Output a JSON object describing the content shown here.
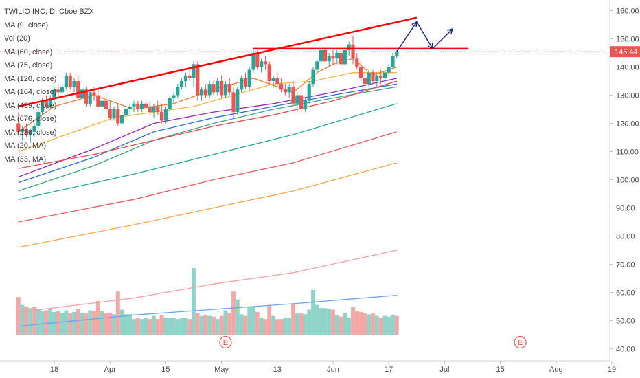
{
  "legend": {
    "symbol_line": "TWILIO INC, D, Cboe BZX",
    "items": [
      "MA (9, close)",
      "Vol (20)",
      "MA (60, close)",
      "MA (75, close)",
      "MA (120, close)",
      "MA (164, close)",
      "MA (439, close)",
      "MA (676, close)",
      "MA (236, close)",
      "MA (20, MA)",
      "MA (33, MA)"
    ]
  },
  "last_price": "145.44",
  "earnings_marker": "E",
  "colors": {
    "up": "#26a69a",
    "down": "#ef5350",
    "vol_up": "#8fd3c9",
    "vol_down": "#f4a8a6",
    "trendline": "#ff0000",
    "projection": "#1c2a8a",
    "price_tag": "#ef5350"
  },
  "chart_data": {
    "type": "candlestick",
    "title": "TWILIO INC, D, Cboe BZX",
    "ylim": [
      38,
      162
    ],
    "y_ticks": [
      "160.00",
      "150.00",
      "140.00",
      "130.00",
      "120.00",
      "110.00",
      "100.00",
      "90.00",
      "80.00",
      "70.00",
      "60.00",
      "50.00",
      "40.00"
    ],
    "x_ticks": [
      "18",
      "Apr",
      "15",
      "May",
      "13",
      "Jun",
      "17",
      "Jul",
      "15",
      "Aug",
      "19"
    ],
    "x_tick_days": [
      0,
      14,
      28,
      42,
      56,
      70,
      84,
      98,
      112,
      126,
      140
    ],
    "first_day": -9,
    "candles": [
      [
        -9,
        120,
        124,
        116,
        117
      ],
      [
        -8,
        117,
        119,
        114,
        118
      ],
      [
        -7,
        118,
        120,
        115,
        116
      ],
      [
        -6,
        116,
        118,
        113,
        117
      ],
      [
        -5,
        117,
        120,
        115,
        119
      ],
      [
        -4,
        119,
        125,
        118,
        124
      ],
      [
        -3,
        124,
        129,
        123,
        128
      ],
      [
        -2,
        128,
        130,
        125,
        126
      ],
      [
        -1,
        126,
        130,
        125,
        129
      ],
      [
        0,
        129,
        133,
        128,
        132
      ],
      [
        1,
        132,
        134,
        130,
        131
      ],
      [
        2,
        131,
        134,
        129,
        133
      ],
      [
        3,
        133,
        138,
        132,
        137
      ],
      [
        4,
        137,
        138,
        132,
        133
      ],
      [
        5,
        133,
        136,
        131,
        135
      ],
      [
        6,
        135,
        137,
        128,
        129
      ],
      [
        7,
        129,
        133,
        128,
        132
      ],
      [
        8,
        132,
        133,
        126,
        127
      ],
      [
        9,
        127,
        132,
        126,
        131
      ],
      [
        10,
        131,
        133,
        128,
        130
      ],
      [
        11,
        130,
        132,
        125,
        126
      ],
      [
        12,
        126,
        129,
        123,
        128
      ],
      [
        13,
        128,
        130,
        124,
        125
      ],
      [
        14,
        125,
        128,
        121,
        122
      ],
      [
        15,
        122,
        126,
        121,
        125
      ],
      [
        16,
        125,
        127,
        119,
        120
      ],
      [
        17,
        120,
        124,
        119,
        123
      ],
      [
        18,
        123,
        126,
        122,
        125
      ],
      [
        19,
        125,
        127,
        123,
        126
      ],
      [
        20,
        126,
        128,
        124,
        127
      ],
      [
        21,
        127,
        128,
        124,
        125
      ],
      [
        22,
        125,
        128,
        124,
        127
      ],
      [
        23,
        127,
        128,
        125,
        126
      ],
      [
        24,
        126,
        128,
        123,
        124
      ],
      [
        25,
        124,
        127,
        122,
        126
      ],
      [
        26,
        126,
        128,
        123,
        124
      ],
      [
        27,
        124,
        127,
        120,
        121
      ],
      [
        28,
        121,
        126,
        120,
        125
      ],
      [
        29,
        125,
        130,
        124,
        129
      ],
      [
        30,
        129,
        131,
        127,
        130
      ],
      [
        31,
        130,
        134,
        129,
        133
      ],
      [
        32,
        133,
        136,
        132,
        135
      ],
      [
        33,
        135,
        138,
        133,
        137
      ],
      [
        34,
        137,
        139,
        135,
        136
      ],
      [
        35,
        136,
        142,
        133,
        141
      ],
      [
        36,
        141,
        142,
        128,
        130
      ],
      [
        37,
        130,
        133,
        128,
        132
      ],
      [
        38,
        132,
        134,
        129,
        130
      ],
      [
        39,
        130,
        135,
        129,
        134
      ],
      [
        40,
        134,
        135,
        130,
        131
      ],
      [
        41,
        131,
        136,
        130,
        135
      ],
      [
        42,
        135,
        137,
        129,
        130
      ],
      [
        43,
        130,
        135,
        129,
        134
      ],
      [
        44,
        134,
        136,
        130,
        131
      ],
      [
        45,
        131,
        133,
        122,
        124
      ],
      [
        46,
        124,
        133,
        123,
        132
      ],
      [
        47,
        132,
        137,
        131,
        136
      ],
      [
        48,
        136,
        138,
        132,
        133
      ],
      [
        49,
        133,
        140,
        132,
        139
      ],
      [
        50,
        139,
        146,
        138,
        145
      ],
      [
        51,
        145,
        146,
        139,
        140
      ],
      [
        52,
        140,
        143,
        138,
        142
      ],
      [
        53,
        142,
        144,
        139,
        141
      ],
      [
        54,
        141,
        142,
        134,
        135
      ],
      [
        55,
        135,
        137,
        133,
        136
      ],
      [
        56,
        136,
        138,
        133,
        134
      ],
      [
        57,
        134,
        136,
        131,
        132
      ],
      [
        58,
        132,
        134,
        130,
        131
      ],
      [
        59,
        131,
        134,
        129,
        133
      ],
      [
        60,
        133,
        135,
        126,
        127
      ],
      [
        61,
        127,
        131,
        124,
        130
      ],
      [
        62,
        130,
        132,
        124,
        125
      ],
      [
        63,
        125,
        129,
        124,
        128
      ],
      [
        64,
        128,
        135,
        127,
        134
      ],
      [
        65,
        134,
        140,
        133,
        139
      ],
      [
        66,
        139,
        143,
        138,
        142
      ],
      [
        67,
        142,
        148,
        141,
        146
      ],
      [
        68,
        146,
        147,
        141,
        142
      ],
      [
        69,
        142,
        145,
        140,
        144
      ],
      [
        70,
        144,
        146,
        141,
        143
      ],
      [
        71,
        143,
        146,
        141,
        145
      ],
      [
        72,
        145,
        146,
        140,
        141
      ],
      [
        73,
        141,
        147,
        140,
        146
      ],
      [
        74,
        146,
        149,
        144,
        148
      ],
      [
        75,
        148,
        151,
        141,
        143
      ],
      [
        76,
        143,
        145,
        139,
        140
      ],
      [
        77,
        140,
        142,
        135,
        136
      ],
      [
        78,
        136,
        138,
        133,
        134
      ],
      [
        79,
        134,
        139,
        133,
        138
      ],
      [
        80,
        138,
        139,
        134,
        135
      ],
      [
        81,
        135,
        138,
        133,
        137
      ],
      [
        82,
        137,
        139,
        134,
        136
      ],
      [
        83,
        136,
        139,
        134,
        138
      ],
      [
        84,
        138,
        141,
        137,
        140
      ],
      [
        85,
        140,
        145,
        139,
        144
      ],
      [
        86,
        144,
        146,
        143,
        145.44
      ]
    ],
    "volume": [
      [
        -9,
        48,
        0
      ],
      [
        -8,
        38,
        1
      ],
      [
        -7,
        36,
        0
      ],
      [
        -6,
        34,
        1
      ],
      [
        -5,
        36,
        0
      ],
      [
        -4,
        33,
        1
      ],
      [
        -3,
        30,
        1
      ],
      [
        -2,
        31,
        0
      ],
      [
        -1,
        33,
        1
      ],
      [
        0,
        29,
        1
      ],
      [
        1,
        30,
        0
      ],
      [
        2,
        28,
        1
      ],
      [
        3,
        31,
        1
      ],
      [
        4,
        27,
        0
      ],
      [
        5,
        29,
        1
      ],
      [
        6,
        33,
        0
      ],
      [
        7,
        28,
        1
      ],
      [
        8,
        27,
        0
      ],
      [
        9,
        31,
        1
      ],
      [
        10,
        30,
        0
      ],
      [
        11,
        43,
        0
      ],
      [
        12,
        30,
        1
      ],
      [
        13,
        27,
        0
      ],
      [
        14,
        28,
        0
      ],
      [
        15,
        26,
        1
      ],
      [
        16,
        55,
        0
      ],
      [
        17,
        32,
        1
      ],
      [
        18,
        26,
        1
      ],
      [
        19,
        26,
        1
      ],
      [
        20,
        20,
        1
      ],
      [
        21,
        22,
        0
      ],
      [
        22,
        20,
        1
      ],
      [
        23,
        21,
        1
      ],
      [
        24,
        20,
        0
      ],
      [
        25,
        24,
        1
      ],
      [
        26,
        20,
        0
      ],
      [
        27,
        25,
        0
      ],
      [
        28,
        22,
        1
      ],
      [
        29,
        21,
        1
      ],
      [
        30,
        22,
        1
      ],
      [
        31,
        20,
        1
      ],
      [
        32,
        21,
        1
      ],
      [
        33,
        21,
        1
      ],
      [
        34,
        20,
        0
      ],
      [
        35,
        85,
        1
      ],
      [
        36,
        28,
        0
      ],
      [
        37,
        24,
        1
      ],
      [
        38,
        25,
        0
      ],
      [
        39,
        24,
        1
      ],
      [
        40,
        23,
        0
      ],
      [
        41,
        20,
        1
      ],
      [
        42,
        24,
        0
      ],
      [
        43,
        31,
        1
      ],
      [
        44,
        28,
        0
      ],
      [
        45,
        55,
        0
      ],
      [
        46,
        45,
        1
      ],
      [
        47,
        26,
        1
      ],
      [
        48,
        24,
        0
      ],
      [
        49,
        36,
        1
      ],
      [
        50,
        36,
        1
      ],
      [
        51,
        29,
        0
      ],
      [
        52,
        22,
        1
      ],
      [
        53,
        20,
        0
      ],
      [
        54,
        38,
        0
      ],
      [
        55,
        24,
        1
      ],
      [
        56,
        20,
        0
      ],
      [
        57,
        20,
        0
      ],
      [
        58,
        22,
        1
      ],
      [
        59,
        22,
        1
      ],
      [
        60,
        39,
        0
      ],
      [
        61,
        27,
        1
      ],
      [
        62,
        27,
        0
      ],
      [
        63,
        26,
        1
      ],
      [
        64,
        32,
        1
      ],
      [
        65,
        57,
        1
      ],
      [
        66,
        38,
        1
      ],
      [
        67,
        34,
        1
      ],
      [
        68,
        34,
        1
      ],
      [
        69,
        33,
        1
      ],
      [
        70,
        32,
        0
      ],
      [
        71,
        25,
        1
      ],
      [
        72,
        23,
        0
      ],
      [
        73,
        28,
        1
      ],
      [
        74,
        22,
        1
      ],
      [
        75,
        35,
        0
      ],
      [
        76,
        30,
        0
      ],
      [
        77,
        29,
        0
      ],
      [
        78,
        27,
        0
      ],
      [
        79,
        26,
        1
      ],
      [
        80,
        27,
        0
      ],
      [
        81,
        24,
        1
      ],
      [
        82,
        22,
        0
      ],
      [
        83,
        24,
        1
      ],
      [
        84,
        23,
        1
      ],
      [
        85,
        25,
        1
      ],
      [
        86,
        24,
        0
      ]
    ],
    "volume_max": 85,
    "moving_averages": [
      {
        "color": "#f57c2c",
        "points": [
          [
            -9,
            117
          ],
          [
            0,
            126
          ],
          [
            10,
            130
          ],
          [
            20,
            125
          ],
          [
            30,
            127
          ],
          [
            40,
            132
          ],
          [
            50,
            136
          ],
          [
            60,
            131
          ],
          [
            66,
            138
          ],
          [
            70,
            141
          ],
          [
            75,
            143
          ],
          [
            80,
            137
          ],
          [
            86,
            140
          ]
        ]
      },
      {
        "color": "#f7b443",
        "points": [
          [
            -9,
            110
          ],
          [
            5,
            117
          ],
          [
            15,
            122
          ],
          [
            25,
            124
          ],
          [
            35,
            126
          ],
          [
            45,
            130
          ],
          [
            55,
            134
          ],
          [
            65,
            135
          ],
          [
            75,
            138
          ],
          [
            86,
            138
          ]
        ]
      },
      {
        "color": "#9c27b0",
        "points": [
          [
            -9,
            101
          ],
          [
            10,
            111
          ],
          [
            25,
            120
          ],
          [
            40,
            124
          ],
          [
            55,
            127
          ],
          [
            70,
            131
          ],
          [
            86,
            136
          ]
        ]
      },
      {
        "color": "#2b6cd9",
        "points": [
          [
            -9,
            99
          ],
          [
            10,
            108
          ],
          [
            25,
            117
          ],
          [
            40,
            122
          ],
          [
            55,
            126
          ],
          [
            70,
            130
          ],
          [
            86,
            134
          ]
        ]
      },
      {
        "color": "#3aa68a",
        "points": [
          [
            -9,
            96
          ],
          [
            10,
            105
          ],
          [
            25,
            114
          ],
          [
            40,
            120
          ],
          [
            55,
            125
          ],
          [
            70,
            129
          ],
          [
            86,
            133
          ]
        ]
      },
      {
        "color": "#e34b4b",
        "points": [
          [
            -9,
            104
          ],
          [
            10,
            109
          ],
          [
            25,
            114
          ],
          [
            40,
            119
          ],
          [
            55,
            123
          ],
          [
            70,
            128
          ],
          [
            86,
            135
          ]
        ]
      },
      {
        "color": "#26a69a",
        "points": [
          [
            -9,
            93
          ],
          [
            20,
            102
          ],
          [
            40,
            109
          ],
          [
            60,
            116
          ],
          [
            86,
            127
          ]
        ]
      },
      {
        "color": "#f05a5a",
        "points": [
          [
            -9,
            85
          ],
          [
            20,
            93
          ],
          [
            40,
            100
          ],
          [
            60,
            106
          ],
          [
            86,
            117
          ]
        ]
      },
      {
        "color": "#f9a64a",
        "points": [
          [
            -9,
            76
          ],
          [
            20,
            84
          ],
          [
            40,
            90
          ],
          [
            60,
            96
          ],
          [
            86,
            106
          ]
        ]
      },
      {
        "color": "#f7a0a8",
        "points": [
          [
            -9,
            53
          ],
          [
            20,
            58
          ],
          [
            40,
            63
          ],
          [
            60,
            67
          ],
          [
            86,
            75
          ]
        ]
      },
      {
        "color": "#6aa6f0",
        "points": [
          [
            -9,
            48
          ],
          [
            20,
            52
          ],
          [
            40,
            54
          ],
          [
            60,
            56
          ],
          [
            86,
            59
          ]
        ]
      }
    ],
    "trendlines": [
      {
        "from": [
          -9,
          126
        ],
        "to": [
          91,
          157.5
        ]
      },
      {
        "from": [
          50,
          146.5
        ],
        "to": [
          104,
          146.5
        ]
      }
    ],
    "projection": [
      [
        91,
        156
      ],
      [
        95,
        146.5
      ],
      [
        100,
        153.5
      ]
    ],
    "dotted_price_line": 145.44,
    "earnings_days": [
      43,
      117
    ]
  }
}
